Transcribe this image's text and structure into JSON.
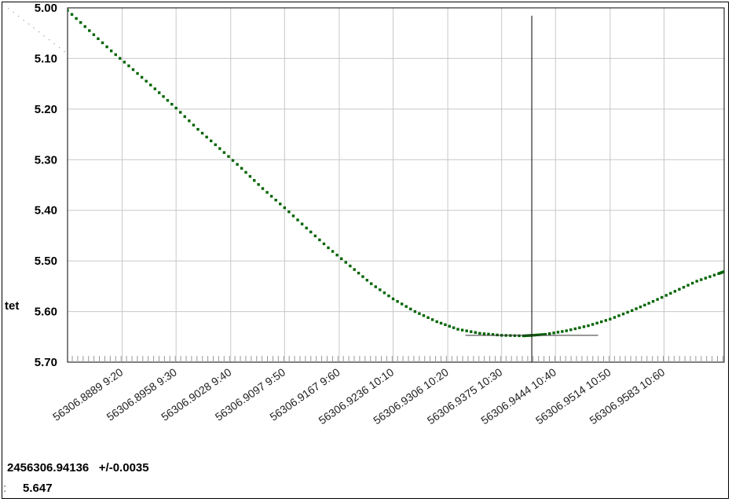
{
  "chart_data": {
    "type": "scatter",
    "ylabel": "tet",
    "xlabel": "",
    "y_inverted": true,
    "ylim": [
      5.0,
      5.7
    ],
    "xlim": [
      56306.8819,
      56306.966
    ],
    "grid": true,
    "y_ticks": [
      {
        "value": 5.0,
        "label": "5.00"
      },
      {
        "value": 5.1,
        "label": "5.10"
      },
      {
        "value": 5.2,
        "label": "5.20"
      },
      {
        "value": 5.3,
        "label": "5.30"
      },
      {
        "value": 5.4,
        "label": "5.40"
      },
      {
        "value": 5.5,
        "label": "5.50"
      },
      {
        "value": 5.6,
        "label": "5.60"
      },
      {
        "value": 5.7,
        "label": "5.70"
      }
    ],
    "x_ticks": [
      {
        "value": 56306.8889,
        "label": "56306.8889  9:20"
      },
      {
        "value": 56306.8958,
        "label": "56306.8958  9:30"
      },
      {
        "value": 56306.9028,
        "label": "56306.9028  9:40"
      },
      {
        "value": 56306.9097,
        "label": "56306.9097  9:50"
      },
      {
        "value": 56306.9167,
        "label": "56306.9167  9:60"
      },
      {
        "value": 56306.9236,
        "label": "56306.9236  10:10"
      },
      {
        "value": 56306.9306,
        "label": "56306.9306  10:20"
      },
      {
        "value": 56306.9375,
        "label": "56306.9375  10:30"
      },
      {
        "value": 56306.9444,
        "label": "56306.9444  10:40"
      },
      {
        "value": 56306.9514,
        "label": "56306.9514  10:50"
      },
      {
        "value": 56306.9583,
        "label": "56306.9583  10:60"
      }
    ],
    "series": [
      {
        "color": "#006400",
        "x": [
          56306.8819,
          56306.8847,
          56306.8875,
          56306.8903,
          56306.8931,
          56306.8958,
          56306.8986,
          56306.9014,
          56306.9042,
          56306.9069,
          56306.9097,
          56306.9125,
          56306.9153,
          56306.9181,
          56306.9208,
          56306.9236,
          56306.9264,
          56306.9292,
          56306.9319,
          56306.9347,
          56306.9375,
          56306.9403,
          56306.9414,
          56306.9431,
          56306.9458,
          56306.9486,
          56306.9514,
          56306.9542,
          56306.9569,
          56306.9597,
          56306.9625,
          56306.9653,
          56306.9662
        ],
        "y": [
          5.005,
          5.045,
          5.085,
          5.122,
          5.16,
          5.198,
          5.24,
          5.278,
          5.317,
          5.357,
          5.395,
          5.435,
          5.474,
          5.51,
          5.545,
          5.575,
          5.6,
          5.62,
          5.635,
          5.643,
          5.647,
          5.648,
          5.647,
          5.645,
          5.638,
          5.628,
          5.615,
          5.598,
          5.58,
          5.56,
          5.54,
          5.525,
          5.52
        ]
      }
    ],
    "extremum": {
      "x": 56306.94136,
      "y": 5.647,
      "error_bar_half_width": 0.0085
    }
  },
  "result": {
    "jd": "2456306.94136",
    "error": "+/-0.0035",
    "value": "5.647"
  }
}
